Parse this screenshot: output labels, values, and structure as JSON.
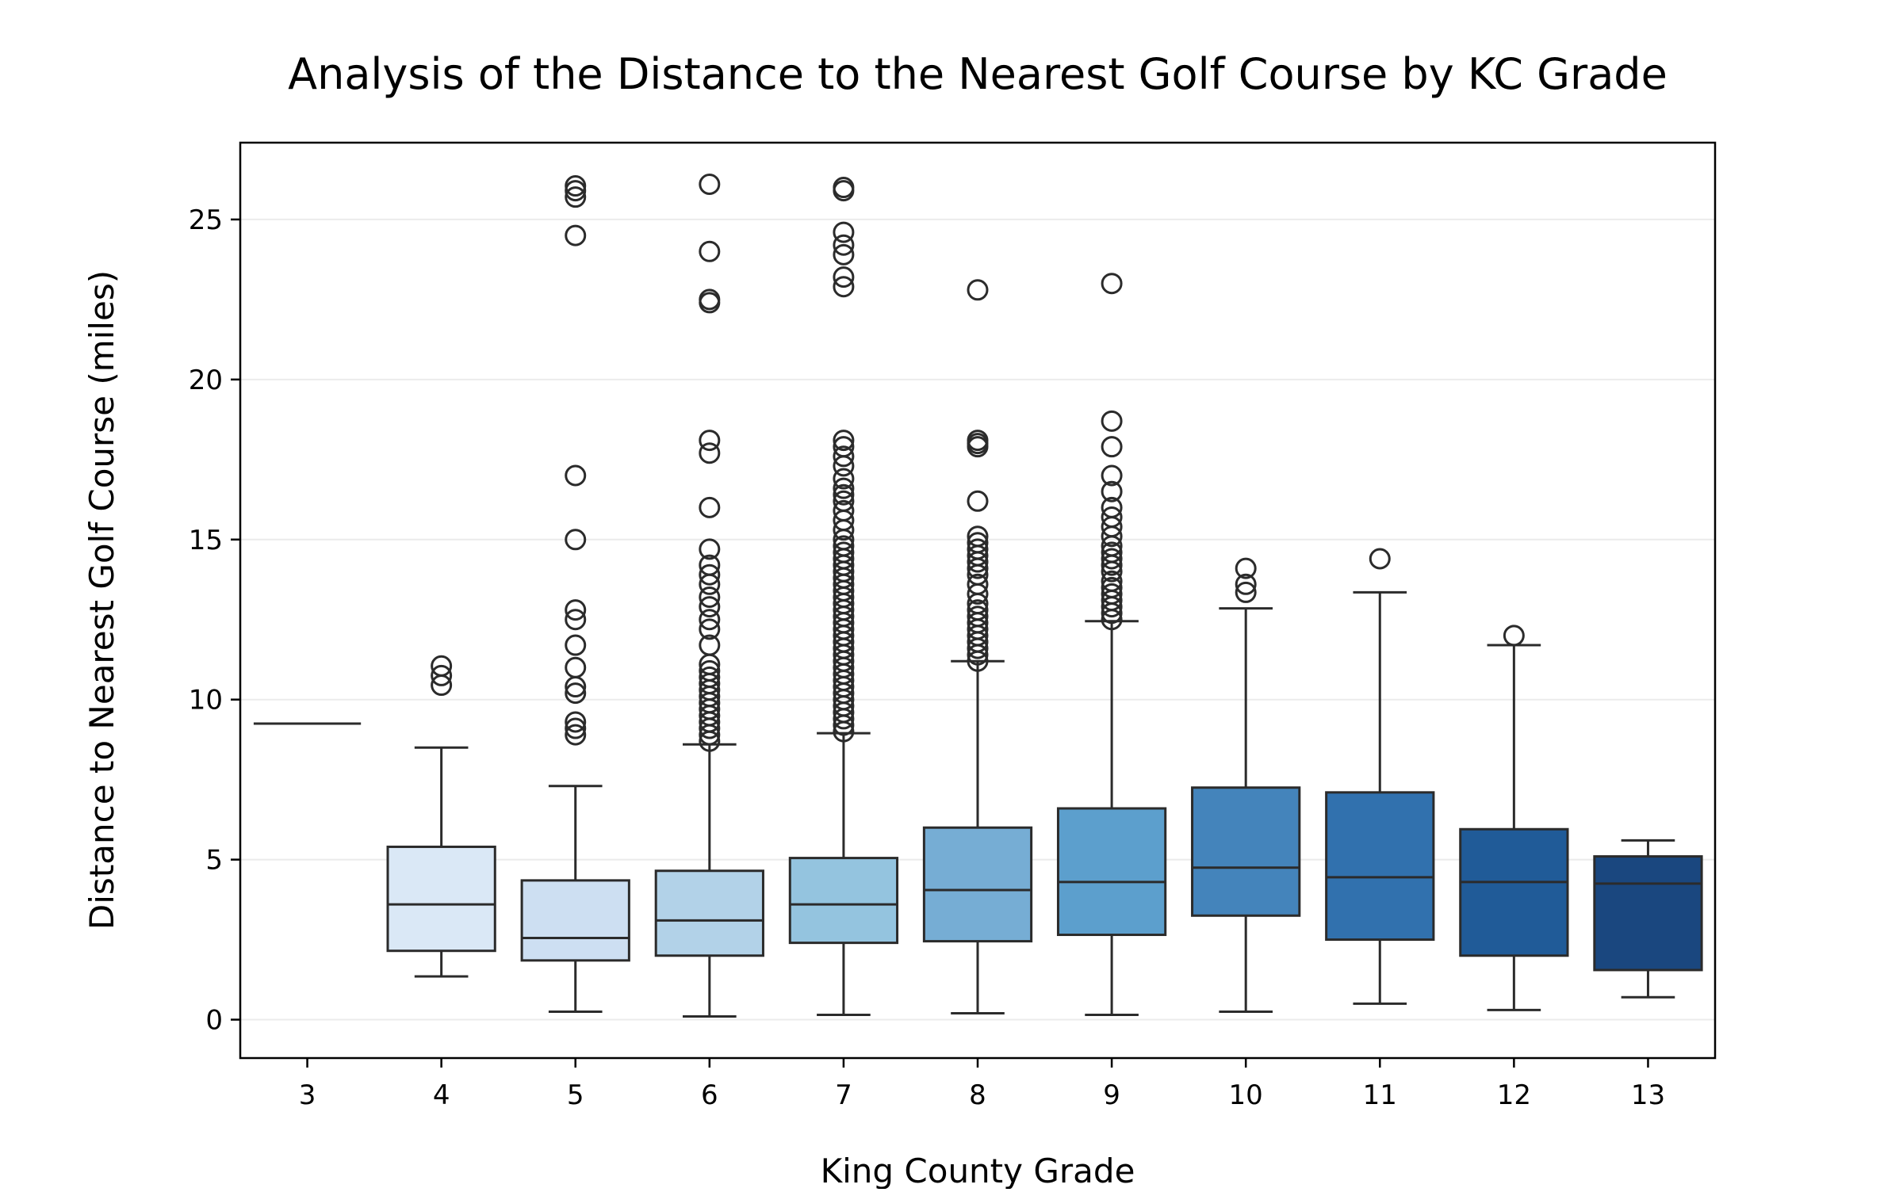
{
  "chart_data": {
    "type": "box",
    "title": "Analysis of the Distance to the Nearest Golf Course by KC Grade",
    "xlabel": "King County Grade",
    "ylabel": "Distance to Nearest Golf Course (miles)",
    "ylim": [
      -1.2,
      27.4
    ],
    "yticks": [
      0,
      5,
      10,
      15,
      20,
      25
    ],
    "grid": "horizontal",
    "colormap": "Blues",
    "categories": [
      "3",
      "4",
      "5",
      "6",
      "7",
      "8",
      "9",
      "10",
      "11",
      "12",
      "13"
    ],
    "boxes": [
      {
        "grade": "3",
        "whislo": 9.25,
        "q1": 9.25,
        "med": 9.25,
        "q3": 9.25,
        "whishi": 9.25,
        "fliers": [],
        "color": "#eef5fc"
      },
      {
        "grade": "4",
        "whislo": 1.35,
        "q1": 2.15,
        "med": 3.6,
        "q3": 5.4,
        "whishi": 8.5,
        "fliers": [
          10.45,
          10.75,
          11.05
        ],
        "color": "#dae8f6"
      },
      {
        "grade": "5",
        "whislo": 0.25,
        "q1": 1.85,
        "med": 2.55,
        "q3": 4.35,
        "whishi": 7.3,
        "fliers": [
          8.9,
          9.1,
          9.3,
          10.2,
          10.4,
          11.0,
          11.7,
          12.5,
          12.8,
          15.0,
          17.0,
          24.5,
          25.7,
          25.9,
          26.05
        ],
        "color": "#cddff2"
      },
      {
        "grade": "6",
        "whislo": 0.1,
        "q1": 2.0,
        "med": 3.1,
        "q3": 4.65,
        "whishi": 8.6,
        "fliers": [
          8.7,
          8.9,
          9.1,
          9.3,
          9.5,
          9.7,
          9.9,
          10.1,
          10.3,
          10.5,
          10.7,
          10.9,
          11.1,
          11.7,
          12.2,
          12.5,
          12.9,
          13.2,
          13.6,
          13.9,
          14.2,
          14.7,
          16.0,
          17.7,
          18.1,
          22.4,
          22.5,
          24.0,
          26.1
        ],
        "color": "#b2d2e8"
      },
      {
        "grade": "7",
        "whislo": 0.15,
        "q1": 2.4,
        "med": 3.6,
        "q3": 5.05,
        "whishi": 8.95,
        "fliers": [
          9.0,
          9.2,
          9.4,
          9.6,
          9.8,
          10.0,
          10.2,
          10.4,
          10.6,
          10.8,
          11.0,
          11.2,
          11.4,
          11.6,
          11.8,
          12.0,
          12.2,
          12.4,
          12.6,
          12.8,
          13.0,
          13.2,
          13.4,
          13.6,
          13.8,
          14.0,
          14.2,
          14.4,
          14.6,
          14.8,
          15.0,
          15.3,
          15.6,
          15.9,
          16.2,
          16.4,
          16.6,
          16.9,
          17.3,
          17.6,
          17.9,
          18.1,
          22.9,
          23.2,
          23.9,
          24.2,
          24.6,
          25.9,
          26.0
        ],
        "color": "#94c4df"
      },
      {
        "grade": "8",
        "whislo": 0.2,
        "q1": 2.45,
        "med": 4.05,
        "q3": 6.0,
        "whishi": 11.2,
        "fliers": [
          11.2,
          11.4,
          11.6,
          11.8,
          12.0,
          12.2,
          12.4,
          12.6,
          12.8,
          13.0,
          13.3,
          13.6,
          13.9,
          14.1,
          14.3,
          14.5,
          14.7,
          14.9,
          15.1,
          16.2,
          17.9,
          18.0,
          18.1,
          22.8
        ],
        "color": "#76add4"
      },
      {
        "grade": "9",
        "whislo": 0.15,
        "q1": 2.65,
        "med": 4.3,
        "q3": 6.6,
        "whishi": 12.45,
        "fliers": [
          12.5,
          12.7,
          12.9,
          13.1,
          13.3,
          13.5,
          13.7,
          14.0,
          14.2,
          14.4,
          14.6,
          14.8,
          15.1,
          15.4,
          15.7,
          16.0,
          16.5,
          17.0,
          17.9,
          18.7,
          23.0
        ],
        "color": "#5c9fcd"
      },
      {
        "grade": "10",
        "whislo": 0.25,
        "q1": 3.25,
        "med": 4.75,
        "q3": 7.25,
        "whishi": 12.85,
        "fliers": [
          13.35,
          13.6,
          14.1
        ],
        "color": "#4484bb"
      },
      {
        "grade": "11",
        "whislo": 0.5,
        "q1": 2.5,
        "med": 4.45,
        "q3": 7.1,
        "whishi": 13.35,
        "fliers": [
          14.4
        ],
        "color": "#3171ae"
      },
      {
        "grade": "12",
        "whislo": 0.3,
        "q1": 2.0,
        "med": 4.3,
        "q3": 5.95,
        "whishi": 11.7,
        "fliers": [
          12.0
        ],
        "color": "#205b98"
      },
      {
        "grade": "13",
        "whislo": 0.7,
        "q1": 1.55,
        "med": 4.25,
        "q3": 5.1,
        "whishi": 5.6,
        "fliers": [],
        "color": "#1a477f"
      }
    ]
  }
}
